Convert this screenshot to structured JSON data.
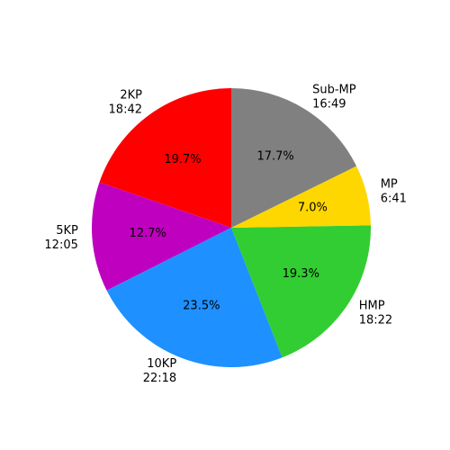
{
  "chart_data": {
    "type": "pie",
    "categories": [
      "2KP",
      "5KP",
      "10KP",
      "HMP",
      "MP",
      "Sub-MP"
    ],
    "times": [
      "18:42",
      "12:05",
      "22:18",
      "18:22",
      "6:41",
      "16:49"
    ],
    "values": [
      19.7,
      12.7,
      23.5,
      19.3,
      7.0,
      17.7
    ],
    "value_labels": [
      "19.7%",
      "12.7%",
      "23.5%",
      "19.3%",
      "7.0%",
      "17.7%"
    ],
    "colors": [
      "#ff0000",
      "#bf00bf",
      "#1e90ff",
      "#32cd32",
      "#ffd700",
      "#808080"
    ]
  }
}
